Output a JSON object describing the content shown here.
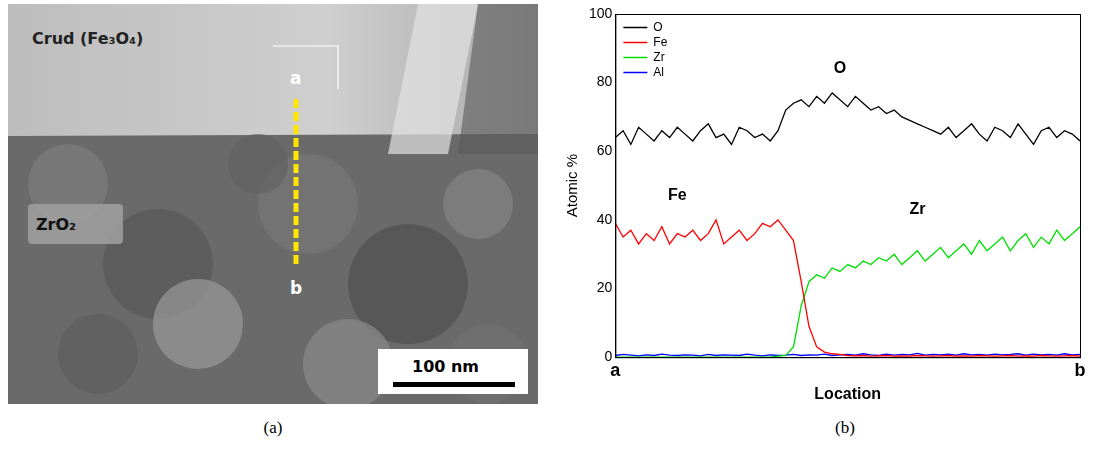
{
  "micrograph": {
    "region_labels": [
      "Crud (Fe₃O₄)",
      "ZrO₂"
    ],
    "line_labels": [
      "a",
      "b"
    ],
    "scale_bar": "100 nm"
  },
  "captions": [
    "(a)",
    "(b)"
  ],
  "chart_data": {
    "type": "line",
    "x_label": "Location",
    "y_label": "Atomic %",
    "x": [
      0,
      1,
      2,
      3,
      4,
      5,
      6,
      7,
      8,
      9,
      10,
      11,
      12,
      13,
      14,
      15,
      16,
      17,
      18,
      19,
      20,
      21,
      22,
      23,
      24,
      25,
      26,
      27,
      28,
      29,
      30,
      31,
      32,
      33,
      34,
      35,
      36,
      37,
      38,
      39,
      40,
      41,
      42,
      43,
      44,
      45,
      46,
      47,
      48,
      49,
      50,
      51,
      52,
      53,
      54,
      55,
      56,
      57,
      58,
      59,
      60
    ],
    "xlim": [
      0,
      60
    ],
    "xticks": [
      {
        "value": 0,
        "label": "a"
      },
      {
        "value": 60,
        "label": "b"
      }
    ],
    "ylim": [
      0,
      100
    ],
    "yticks": [
      0,
      20,
      40,
      60,
      80,
      100
    ],
    "grid": false,
    "legend": "upper left",
    "series": [
      {
        "name": "O",
        "color": "#000000",
        "values": [
          64,
          66,
          62,
          67,
          65,
          63,
          66,
          64,
          67,
          65,
          63,
          66,
          68,
          64,
          65,
          62,
          67,
          66,
          64,
          65,
          63,
          66,
          72,
          74,
          75,
          73,
          76,
          74,
          77,
          75,
          73,
          76,
          74,
          72,
          73,
          71,
          72,
          70,
          69,
          68,
          67,
          66,
          65,
          67,
          64,
          66,
          68,
          65,
          63,
          67,
          66,
          64,
          68,
          65,
          62,
          66,
          67,
          64,
          66,
          65,
          63
        ]
      },
      {
        "name": "Fe",
        "color": "#ff0000",
        "values": [
          39,
          35,
          37,
          33,
          36,
          34,
          38,
          33,
          36,
          35,
          37,
          34,
          36,
          40,
          33,
          35,
          37,
          34,
          36,
          39,
          38,
          40,
          37,
          34,
          22,
          9,
          3,
          1.5,
          1,
          0.8,
          0.5,
          0.4,
          0.5,
          0.3,
          0.4,
          0.5,
          0.3,
          0.4,
          0.3,
          0.5,
          0.4,
          0.3,
          0.4,
          0.5,
          0.3,
          0.4,
          0.3,
          0.5,
          0.4,
          0.3,
          0.4,
          0.5,
          0.3,
          0.4,
          0.3,
          0.5,
          0.4,
          0.3,
          0.4,
          0.5,
          0.3
        ]
      },
      {
        "name": "Zr",
        "color": "#00dd00",
        "values": [
          0,
          0,
          0,
          0,
          0,
          0,
          0,
          0,
          0,
          0,
          0,
          0,
          0,
          0,
          0,
          0,
          0,
          0,
          0,
          0,
          0,
          0.3,
          0.5,
          3,
          15,
          22,
          24,
          23,
          26,
          25,
          27,
          26,
          28,
          27,
          29,
          28,
          30,
          27,
          29,
          31,
          28,
          30,
          32,
          29,
          31,
          33,
          30,
          34,
          31,
          33,
          35,
          31,
          34,
          36,
          32,
          35,
          33,
          37,
          34,
          36,
          38
        ]
      },
      {
        "name": "Al",
        "color": "#0000ff",
        "values": [
          0.5,
          0.8,
          0.6,
          0.4,
          0.7,
          0.5,
          0.9,
          0.6,
          0.5,
          0.7,
          0.6,
          0.4,
          0.8,
          0.5,
          0.7,
          0.6,
          0.5,
          0.9,
          0.6,
          0.4,
          0.7,
          0.5,
          0.6,
          0.8,
          0.5,
          0.7,
          0.6,
          0.9,
          0.5,
          0.7,
          0.8,
          0.6,
          1.0,
          0.7,
          0.5,
          0.9,
          0.6,
          0.8,
          0.7,
          1.1,
          0.6,
          0.8,
          0.7,
          0.9,
          0.6,
          1.0,
          0.7,
          0.8,
          0.6,
          0.9,
          0.7,
          0.8,
          1.0,
          0.6,
          0.9,
          0.7,
          0.8,
          0.6,
          1.0,
          0.7,
          0.8
        ]
      }
    ],
    "annotations": [
      {
        "text": "O",
        "x": 29,
        "y": 84
      },
      {
        "text": "Fe",
        "x": 8,
        "y": 47
      },
      {
        "text": "Zr",
        "x": 39,
        "y": 43
      }
    ]
  }
}
